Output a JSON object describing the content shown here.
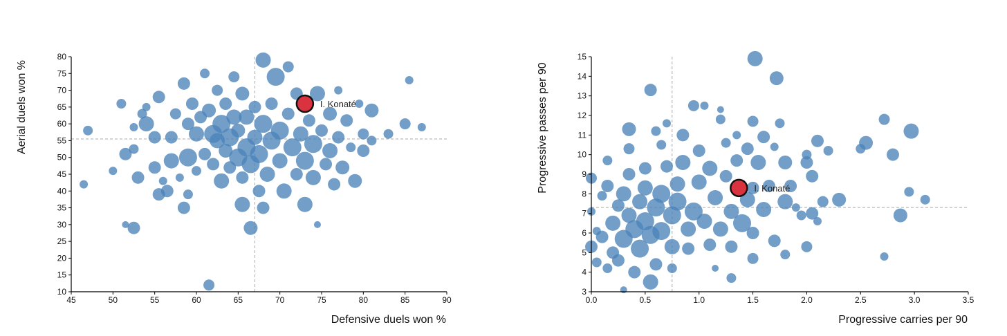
{
  "colors": {
    "dot": "#4a83b8",
    "highlight": "#d9333f",
    "highlight_stroke": "#111111",
    "reference": "#aaaaaa"
  },
  "chart_data": [
    {
      "type": "scatter",
      "xlabel": "Defensive duels won %",
      "ylabel": "Aerial duels won %",
      "xlim": [
        45,
        90
      ],
      "ylim": [
        10,
        80
      ],
      "xticks": [
        45,
        50,
        55,
        60,
        65,
        70,
        75,
        80,
        85,
        90
      ],
      "yticks": [
        10,
        15,
        20,
        25,
        30,
        35,
        40,
        45,
        50,
        55,
        60,
        65,
        70,
        75,
        80
      ],
      "reference": {
        "x": 67,
        "y": 55.5
      },
      "highlight": {
        "label": "I. Konaté",
        "x": 73,
        "y": 66
      },
      "points": [
        [
          46.5,
          42,
          6
        ],
        [
          47,
          58,
          7
        ],
        [
          50,
          46,
          6
        ],
        [
          51,
          66,
          7
        ],
        [
          51.5,
          51,
          9
        ],
        [
          51.5,
          30,
          5
        ],
        [
          52.5,
          52.5,
          7
        ],
        [
          52.5,
          59,
          6
        ],
        [
          52.5,
          29,
          9
        ],
        [
          53,
          44,
          9
        ],
        [
          53.5,
          63,
          7
        ],
        [
          54,
          60,
          11
        ],
        [
          54,
          65,
          6
        ],
        [
          55,
          56,
          9
        ],
        [
          55,
          47,
          9
        ],
        [
          55.5,
          39,
          9
        ],
        [
          55.5,
          68,
          9
        ],
        [
          56,
          43,
          6
        ],
        [
          56.5,
          40,
          9
        ],
        [
          57,
          56,
          9
        ],
        [
          57,
          49,
          11
        ],
        [
          57.5,
          63,
          8
        ],
        [
          58,
          44,
          6
        ],
        [
          58.5,
          72,
          9
        ],
        [
          58.5,
          35,
          9
        ],
        [
          59,
          60,
          9
        ],
        [
          59,
          50,
          13
        ],
        [
          59,
          39,
          7
        ],
        [
          59.5,
          66,
          9
        ],
        [
          60,
          46,
          7
        ],
        [
          60,
          57,
          11
        ],
        [
          60.5,
          62,
          9
        ],
        [
          61,
          51,
          9
        ],
        [
          61,
          75,
          7
        ],
        [
          61.5,
          12,
          8
        ],
        [
          61.5,
          64,
          10
        ],
        [
          62,
          57,
          13
        ],
        [
          62,
          48,
          9
        ],
        [
          62.5,
          55,
          11
        ],
        [
          62.5,
          70,
          8
        ],
        [
          63,
          43,
          11
        ],
        [
          63,
          60,
          13
        ],
        [
          63.5,
          52,
          10
        ],
        [
          63.5,
          66,
          9
        ],
        [
          64,
          56,
          13
        ],
        [
          64,
          47,
          9
        ],
        [
          64.5,
          74,
          8
        ],
        [
          64.5,
          62,
          11
        ],
        [
          65,
          50,
          13
        ],
        [
          65,
          58,
          10
        ],
        [
          65.5,
          36,
          11
        ],
        [
          65.5,
          44,
          9
        ],
        [
          65.5,
          69,
          10
        ],
        [
          66,
          53,
          13
        ],
        [
          66,
          62,
          11
        ],
        [
          66.5,
          29,
          10
        ],
        [
          66.5,
          48,
          13
        ],
        [
          67,
          56,
          11
        ],
        [
          67,
          65,
          9
        ],
        [
          67.5,
          40,
          9
        ],
        [
          67.5,
          51,
          13
        ],
        [
          68,
          79,
          11
        ],
        [
          68,
          60,
          13
        ],
        [
          68,
          35,
          9
        ],
        [
          68.5,
          45,
          11
        ],
        [
          69,
          55,
          13
        ],
        [
          69,
          66,
          9
        ],
        [
          69.5,
          74,
          13
        ],
        [
          70,
          49,
          11
        ],
        [
          70,
          58,
          13
        ],
        [
          70.5,
          40,
          11
        ],
        [
          71,
          63,
          9
        ],
        [
          71,
          77,
          8
        ],
        [
          71.5,
          53,
          13
        ],
        [
          72,
          45,
          9
        ],
        [
          72,
          69,
          9
        ],
        [
          72.5,
          57,
          11
        ],
        [
          73,
          36,
          11
        ],
        [
          73,
          49,
          13
        ],
        [
          73.5,
          61,
          9
        ],
        [
          74,
          44,
          11
        ],
        [
          74,
          54,
          13
        ],
        [
          74.5,
          69,
          11
        ],
        [
          74.5,
          30,
          5
        ],
        [
          75,
          58,
          9
        ],
        [
          75.5,
          48,
          9
        ],
        [
          76,
          63,
          10
        ],
        [
          76,
          52,
          11
        ],
        [
          76.5,
          42,
          9
        ],
        [
          77,
          70,
          6
        ],
        [
          77,
          56,
          9
        ],
        [
          77.5,
          47,
          10
        ],
        [
          78,
          61,
          9
        ],
        [
          78.5,
          53,
          7
        ],
        [
          79,
          43,
          10
        ],
        [
          79.5,
          66,
          6
        ],
        [
          80,
          52,
          9
        ],
        [
          80,
          57,
          8
        ],
        [
          81,
          64,
          10
        ],
        [
          81,
          55,
          7
        ],
        [
          83,
          57,
          7
        ],
        [
          85,
          60,
          8
        ],
        [
          85.5,
          73,
          6
        ],
        [
          87,
          59,
          6
        ]
      ]
    },
    {
      "type": "scatter",
      "xlabel": "Progressive carries per 90",
      "ylabel": "Progressive passes per 90",
      "xlim": [
        0.0,
        3.5
      ],
      "ylim": [
        3,
        15
      ],
      "xticks": [
        0.0,
        0.5,
        1.0,
        1.5,
        2.0,
        2.5,
        3.0,
        3.5
      ],
      "yticks": [
        3,
        4,
        5,
        6,
        7,
        8,
        9,
        10,
        11,
        12,
        13,
        14,
        15
      ],
      "reference": {
        "x": 0.75,
        "y": 7.3
      },
      "highlight": {
        "label": "I. Konaté",
        "x": 1.37,
        "y": 8.3
      },
      "points": [
        [
          0.0,
          5.3,
          9
        ],
        [
          0.0,
          7.1,
          6
        ],
        [
          0.0,
          8.8,
          8
        ],
        [
          0.05,
          4.5,
          7
        ],
        [
          0.05,
          6.1,
          6
        ],
        [
          0.1,
          5.8,
          9
        ],
        [
          0.1,
          7.9,
          7
        ],
        [
          0.15,
          9.7,
          7
        ],
        [
          0.15,
          4.2,
          7
        ],
        [
          0.15,
          8.4,
          9
        ],
        [
          0.2,
          6.5,
          11
        ],
        [
          0.2,
          5.0,
          9
        ],
        [
          0.25,
          7.4,
          9
        ],
        [
          0.25,
          4.6,
          9
        ],
        [
          0.3,
          8.0,
          11
        ],
        [
          0.3,
          5.7,
          13
        ],
        [
          0.3,
          3.1,
          5
        ],
        [
          0.35,
          6.9,
          11
        ],
        [
          0.35,
          10.3,
          8
        ],
        [
          0.35,
          9.0,
          9
        ],
        [
          0.35,
          11.3,
          10
        ],
        [
          0.4,
          4.0,
          9
        ],
        [
          0.4,
          6.2,
          13
        ],
        [
          0.45,
          7.6,
          11
        ],
        [
          0.45,
          5.2,
          13
        ],
        [
          0.5,
          8.3,
          11
        ],
        [
          0.5,
          6.6,
          13
        ],
        [
          0.5,
          9.3,
          9
        ],
        [
          0.55,
          3.5,
          11
        ],
        [
          0.55,
          13.3,
          9
        ],
        [
          0.55,
          5.9,
          13
        ],
        [
          0.6,
          7.3,
          13
        ],
        [
          0.6,
          11.2,
          7
        ],
        [
          0.6,
          4.4,
          9
        ],
        [
          0.65,
          10.5,
          7
        ],
        [
          0.65,
          8.0,
          13
        ],
        [
          0.65,
          6.1,
          13
        ],
        [
          0.7,
          11.6,
          6
        ],
        [
          0.7,
          9.4,
          9
        ],
        [
          0.75,
          6.9,
          13
        ],
        [
          0.75,
          5.3,
          11
        ],
        [
          0.75,
          4.2,
          7
        ],
        [
          0.8,
          8.5,
          11
        ],
        [
          0.8,
          7.6,
          13
        ],
        [
          0.85,
          11.0,
          9
        ],
        [
          0.85,
          9.6,
          11
        ],
        [
          0.9,
          6.2,
          11
        ],
        [
          0.9,
          5.2,
          9
        ],
        [
          0.95,
          7.1,
          13
        ],
        [
          0.95,
          12.5,
          8
        ],
        [
          1.0,
          8.6,
          11
        ],
        [
          1.0,
          10.2,
          9
        ],
        [
          1.05,
          6.6,
          11
        ],
        [
          1.05,
          12.5,
          6
        ],
        [
          1.1,
          9.3,
          11
        ],
        [
          1.1,
          5.4,
          9
        ],
        [
          1.15,
          7.8,
          11
        ],
        [
          1.15,
          4.2,
          5
        ],
        [
          1.2,
          11.8,
          7
        ],
        [
          1.2,
          12.3,
          5
        ],
        [
          1.2,
          6.2,
          11
        ],
        [
          1.25,
          8.9,
          9
        ],
        [
          1.25,
          10.6,
          7
        ],
        [
          1.3,
          5.3,
          9
        ],
        [
          1.3,
          7.1,
          11
        ],
        [
          1.3,
          3.7,
          7
        ],
        [
          1.35,
          9.7,
          9
        ],
        [
          1.35,
          11.0,
          6
        ],
        [
          1.4,
          6.5,
          13
        ],
        [
          1.45,
          7.7,
          11
        ],
        [
          1.45,
          10.3,
          9
        ],
        [
          1.5,
          11.7,
          8
        ],
        [
          1.5,
          4.7,
          8
        ],
        [
          1.5,
          6.0,
          9
        ],
        [
          1.5,
          8.3,
          9
        ],
        [
          1.52,
          14.9,
          11
        ],
        [
          1.55,
          9.6,
          11
        ],
        [
          1.6,
          7.2,
          11
        ],
        [
          1.6,
          10.9,
          9
        ],
        [
          1.65,
          8.4,
          9
        ],
        [
          1.7,
          5.6,
          9
        ],
        [
          1.7,
          10.4,
          6
        ],
        [
          1.72,
          13.9,
          10
        ],
        [
          1.75,
          11.6,
          7
        ],
        [
          1.8,
          7.6,
          11
        ],
        [
          1.8,
          9.6,
          10
        ],
        [
          1.8,
          4.9,
          7
        ],
        [
          1.85,
          8.4,
          9
        ],
        [
          1.9,
          7.3,
          6
        ],
        [
          1.95,
          6.9,
          7
        ],
        [
          2.0,
          9.6,
          9
        ],
        [
          2.0,
          10.0,
          7
        ],
        [
          2.0,
          5.3,
          8
        ],
        [
          2.05,
          7.0,
          9
        ],
        [
          2.05,
          8.9,
          9
        ],
        [
          2.1,
          10.7,
          9
        ],
        [
          2.1,
          6.6,
          6
        ],
        [
          2.15,
          7.6,
          8
        ],
        [
          2.2,
          10.2,
          7
        ],
        [
          2.3,
          7.7,
          10
        ],
        [
          2.5,
          10.3,
          7
        ],
        [
          2.55,
          10.6,
          10
        ],
        [
          2.72,
          11.8,
          8
        ],
        [
          2.72,
          4.8,
          6
        ],
        [
          2.8,
          10.0,
          9
        ],
        [
          2.87,
          6.9,
          10
        ],
        [
          2.95,
          8.1,
          7
        ],
        [
          2.97,
          11.2,
          11
        ],
        [
          3.1,
          7.7,
          7
        ]
      ]
    }
  ]
}
